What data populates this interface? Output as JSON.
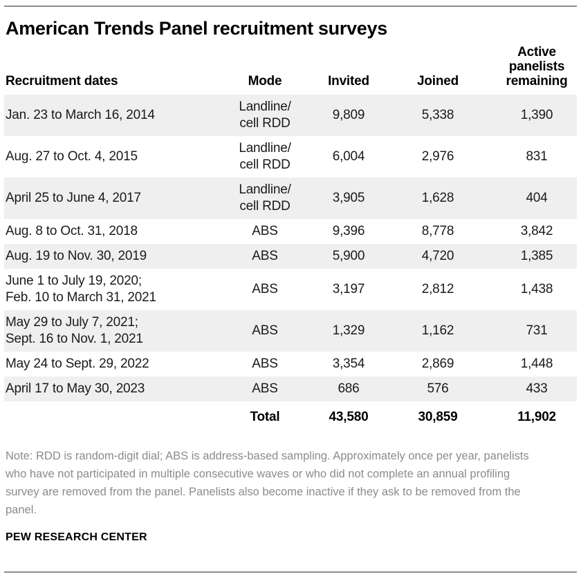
{
  "title": "American Trends Panel recruitment surveys",
  "table": {
    "columns": {
      "dates": "Recruitment dates",
      "mode": "Mode",
      "invited": "Invited",
      "joined": "Joined",
      "remaining": "Active\npanelists\nremaining"
    },
    "rows": [
      {
        "dates": "Jan. 23 to March 16, 2014",
        "mode": "Landline/\ncell RDD",
        "invited": "9,809",
        "joined": "5,338",
        "remaining": "1,390"
      },
      {
        "dates": "Aug. 27 to Oct. 4, 2015",
        "mode": "Landline/\ncell RDD",
        "invited": "6,004",
        "joined": "2,976",
        "remaining": "831"
      },
      {
        "dates": "April 25 to June 4, 2017",
        "mode": "Landline/\ncell RDD",
        "invited": "3,905",
        "joined": "1,628",
        "remaining": "404"
      },
      {
        "dates": "Aug. 8 to Oct. 31, 2018",
        "mode": "ABS",
        "invited": "9,396",
        "joined": "8,778",
        "remaining": "3,842"
      },
      {
        "dates": "Aug. 19 to Nov. 30, 2019",
        "mode": "ABS",
        "invited": "5,900",
        "joined": "4,720",
        "remaining": "1,385"
      },
      {
        "dates": "June 1 to July 19, 2020;\nFeb. 10 to March 31, 2021",
        "mode": "ABS",
        "invited": "3,197",
        "joined": "2,812",
        "remaining": "1,438"
      },
      {
        "dates": "May 29 to July 7, 2021;\nSept. 16 to Nov. 1, 2021",
        "mode": "ABS",
        "invited": "1,329",
        "joined": "1,162",
        "remaining": "731"
      },
      {
        "dates": "May 24 to Sept. 29, 2022",
        "mode": "ABS",
        "invited": "3,354",
        "joined": "2,869",
        "remaining": "1,448"
      },
      {
        "dates": "April 17 to May 30, 2023",
        "mode": "ABS",
        "invited": "686",
        "joined": "576",
        "remaining": "433"
      }
    ],
    "total": {
      "label": "Total",
      "invited": "43,580",
      "joined": "30,859",
      "remaining": "11,902"
    }
  },
  "note": "Note: RDD is random-digit dial; ABS is address-based sampling. Approximately once per year, panelists who have not participated in multiple consecutive waves or who did not complete an annual profiling survey are removed from the panel. Panelists also become inactive if they ask to be removed from the panel.",
  "source": "PEW RESEARCH CENTER",
  "colors": {
    "row_shade": "#efefef",
    "note_text": "#8b8b8b",
    "rule": "#8c8c8c",
    "body_text": "#1a1a1a",
    "heading_text": "#000000"
  },
  "chart_data": {
    "type": "table",
    "title": "American Trends Panel recruitment surveys",
    "columns": [
      "Recruitment dates",
      "Mode",
      "Invited",
      "Joined",
      "Active panelists remaining"
    ],
    "rows": [
      [
        "Jan. 23 to March 16, 2014",
        "Landline/cell RDD",
        9809,
        5338,
        1390
      ],
      [
        "Aug. 27 to Oct. 4, 2015",
        "Landline/cell RDD",
        6004,
        2976,
        831
      ],
      [
        "April 25 to June 4, 2017",
        "Landline/cell RDD",
        3905,
        1628,
        404
      ],
      [
        "Aug. 8 to Oct. 31, 2018",
        "ABS",
        9396,
        8778,
        3842
      ],
      [
        "Aug. 19 to Nov. 30, 2019",
        "ABS",
        5900,
        4720,
        1385
      ],
      [
        "June 1 to July 19, 2020; Feb. 10 to March 31, 2021",
        "ABS",
        3197,
        2812,
        1438
      ],
      [
        "May 29 to July 7, 2021; Sept. 16 to Nov. 1, 2021",
        "ABS",
        1329,
        1162,
        731
      ],
      [
        "May 24 to Sept. 29, 2022",
        "ABS",
        3354,
        2869,
        1448
      ],
      [
        "April 17 to May 30, 2023",
        "ABS",
        686,
        576,
        433
      ]
    ],
    "total_row": [
      "",
      "Total",
      43580,
      30859,
      11902
    ],
    "layout": {
      "striped_rows": "odd rows shaded",
      "numeric_alignment": "center",
      "grid": false
    }
  }
}
